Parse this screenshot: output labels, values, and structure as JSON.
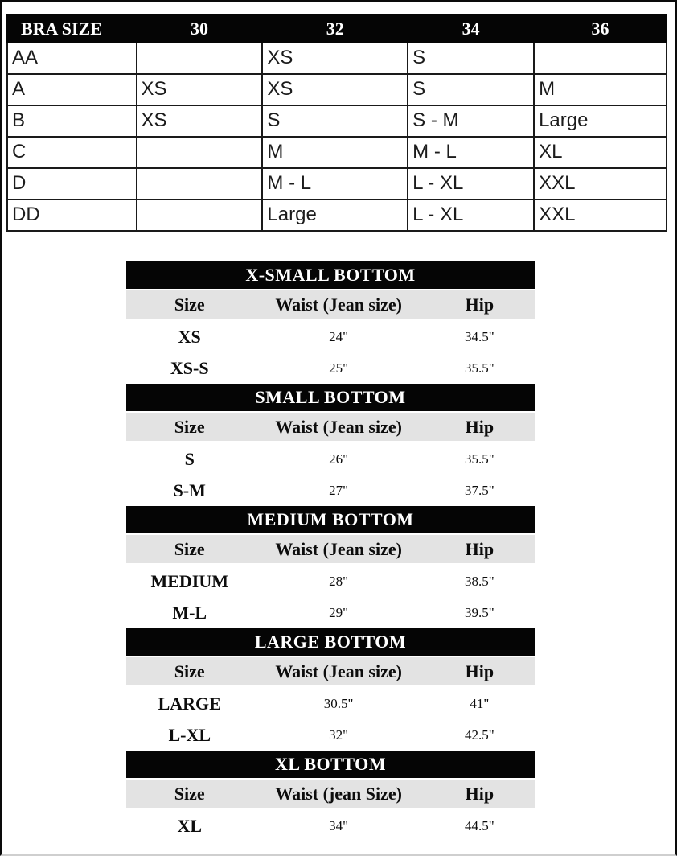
{
  "colors": {
    "bar_background": "#050505",
    "bar_text": "#ffffff",
    "subheader_background": "#e3e3e3",
    "cell_border": "#1a1a1a",
    "text": "#1c1c1c",
    "page_background": "#ffffff"
  },
  "bra_table": {
    "headers": [
      "BRA SIZE",
      "30",
      "32",
      "34",
      "36"
    ],
    "rows": [
      [
        "AA",
        "",
        "XS",
        "S",
        ""
      ],
      [
        "A",
        "XS",
        "XS",
        "S",
        "M"
      ],
      [
        "B",
        "XS",
        "S",
        "S - M",
        "Large"
      ],
      [
        "C",
        "",
        "M",
        "M - L",
        "XL"
      ],
      [
        "D",
        "",
        "M - L",
        "L - XL",
        "XXL"
      ],
      [
        "DD",
        "",
        "Large",
        "L - XL",
        "XXL"
      ]
    ]
  },
  "bottom_tables": [
    {
      "title": "X-SMALL BOTTOM",
      "columns": [
        "Size",
        "Waist (Jean size)",
        "Hip"
      ],
      "rows": [
        [
          "XS",
          "24\"",
          "34.5\""
        ],
        [
          "XS-S",
          "25\"",
          "35.5\""
        ]
      ]
    },
    {
      "title": "SMALL BOTTOM",
      "columns": [
        "Size",
        "Waist (Jean size)",
        "Hip"
      ],
      "rows": [
        [
          "S",
          "26\"",
          "35.5\""
        ],
        [
          "S-M",
          "27\"",
          "37.5\""
        ]
      ]
    },
    {
      "title": "MEDIUM BOTTOM",
      "columns": [
        "Size",
        "Waist (Jean size)",
        "Hip"
      ],
      "rows": [
        [
          "MEDIUM",
          "28\"",
          "38.5\""
        ],
        [
          "M-L",
          "29\"",
          "39.5\""
        ]
      ]
    },
    {
      "title": "LARGE BOTTOM",
      "columns": [
        "Size",
        "Waist (Jean size)",
        "Hip"
      ],
      "rows": [
        [
          "LARGE",
          "30.5\"",
          "41\""
        ],
        [
          "L-XL",
          "32\"",
          "42.5\""
        ]
      ]
    },
    {
      "title": "XL BOTTOM",
      "columns": [
        "Size",
        "Waist (jean Size)",
        "Hip"
      ],
      "rows": [
        [
          "XL",
          "34\"",
          "44.5\""
        ]
      ]
    }
  ]
}
